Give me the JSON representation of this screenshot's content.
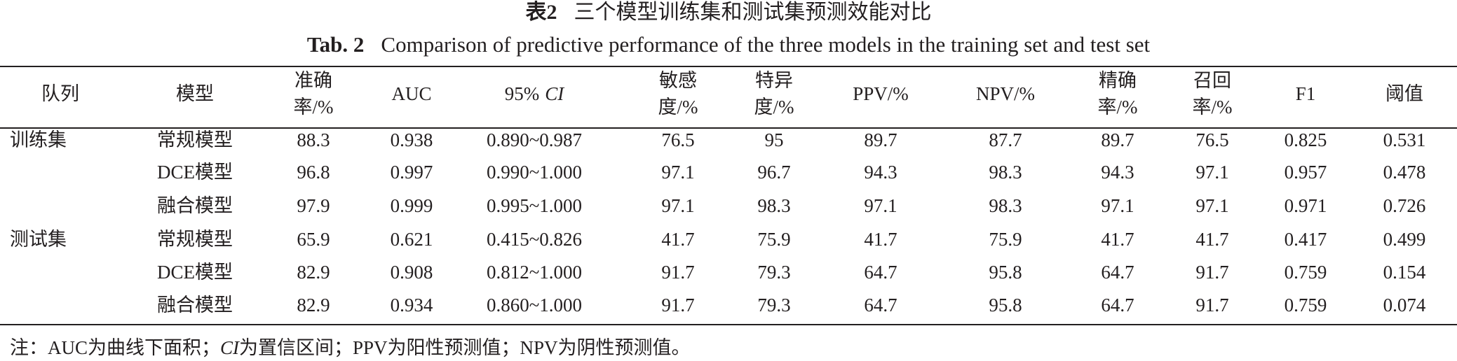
{
  "header": {
    "title_cn_label": "表2",
    "title_cn": "三个模型训练集和测试集预测效能对比",
    "title_en_label": "Tab. 2",
    "title_en": "Comparison of predictive performance of the three models in the training set and test set"
  },
  "table": {
    "columns": [
      [
        "队列"
      ],
      [
        "模型"
      ],
      [
        "准确",
        "率/%"
      ],
      [
        "AUC"
      ],
      [
        "95%",
        "CI"
      ],
      [
        "敏感",
        "度/%"
      ],
      [
        "特异",
        "度/%"
      ],
      [
        "PPV/%"
      ],
      [
        "NPV/%"
      ],
      [
        "精确",
        "率/%"
      ],
      [
        "召回",
        "率/%"
      ],
      [
        "F1"
      ],
      [
        "阈值"
      ]
    ],
    "rows": [
      [
        "训练集",
        "常规模型",
        "88.3",
        "0.938",
        "0.890~0.987",
        "76.5",
        "95",
        "89.7",
        "87.7",
        "89.7",
        "76.5",
        "0.825",
        "0.531"
      ],
      [
        null,
        "DCE模型",
        "96.8",
        "0.997",
        "0.990~1.000",
        "97.1",
        "96.7",
        "94.3",
        "98.3",
        "94.3",
        "97.1",
        "0.957",
        "0.478"
      ],
      [
        null,
        "融合模型",
        "97.9",
        "0.999",
        "0.995~1.000",
        "97.1",
        "98.3",
        "97.1",
        "98.3",
        "97.1",
        "97.1",
        "0.971",
        "0.726"
      ],
      [
        "测试集",
        "常规模型",
        "65.9",
        "0.621",
        "0.415~0.826",
        "41.7",
        "75.9",
        "41.7",
        "75.9",
        "41.7",
        "41.7",
        "0.417",
        "0.499"
      ],
      [
        null,
        "DCE模型",
        "82.9",
        "0.908",
        "0.812~1.000",
        "91.7",
        "79.3",
        "64.7",
        "95.8",
        "64.7",
        "91.7",
        "0.759",
        "0.154"
      ],
      [
        null,
        "融合模型",
        "82.9",
        "0.934",
        "0.860~1.000",
        "91.7",
        "79.3",
        "64.7",
        "95.8",
        "64.7",
        "91.7",
        "0.759",
        "0.074"
      ]
    ]
  },
  "note": [
    "注：AUC为曲线下面积；",
    "CI",
    "为置信区间；PPV为阳性预测值；NPV为阴性预测值。"
  ]
}
